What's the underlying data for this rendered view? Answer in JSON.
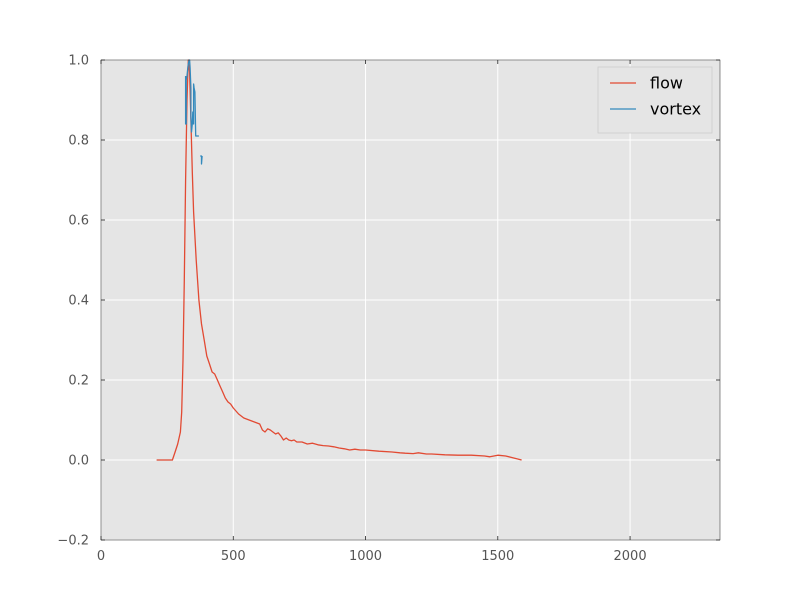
{
  "chart_data": {
    "type": "line",
    "title": "",
    "xlabel": "",
    "ylabel": "",
    "xlim": [
      0,
      2340
    ],
    "ylim": [
      -0.2,
      1.0
    ],
    "xticks": [
      0,
      500,
      1000,
      1500,
      2000
    ],
    "xtick_labels": [
      "0",
      "500",
      "1000",
      "1500",
      "2000"
    ],
    "yticks": [
      -0.2,
      0.0,
      0.2,
      0.4,
      0.6,
      0.8,
      1.0
    ],
    "ytick_labels": [
      "−0.2",
      "0.0",
      "0.2",
      "0.4",
      "0.6",
      "0.8",
      "1.0"
    ],
    "grid": true,
    "legend": "top-right",
    "series": [
      {
        "name": "flow",
        "color": "#E24A33",
        "x": [
          210,
          240,
          270,
          280,
          290,
          300,
          305,
          310,
          315,
          320,
          325,
          330,
          335,
          340,
          345,
          350,
          360,
          370,
          380,
          390,
          400,
          410,
          420,
          430,
          440,
          450,
          460,
          470,
          480,
          490,
          500,
          520,
          540,
          560,
          580,
          600,
          610,
          620,
          630,
          640,
          650,
          660,
          670,
          680,
          690,
          700,
          710,
          720,
          730,
          740,
          760,
          780,
          800,
          820,
          840,
          860,
          880,
          900,
          920,
          940,
          960,
          980,
          1000,
          1050,
          1100,
          1130,
          1150,
          1180,
          1200,
          1230,
          1250,
          1300,
          1350,
          1400,
          1450,
          1470,
          1500,
          1530,
          1560,
          1590
        ],
        "y": [
          0.0,
          0.0,
          0.0,
          0.02,
          0.04,
          0.07,
          0.12,
          0.25,
          0.45,
          0.7,
          0.9,
          1.0,
          0.97,
          0.85,
          0.72,
          0.62,
          0.5,
          0.4,
          0.34,
          0.3,
          0.26,
          0.24,
          0.22,
          0.215,
          0.2,
          0.185,
          0.17,
          0.155,
          0.145,
          0.14,
          0.13,
          0.115,
          0.105,
          0.1,
          0.095,
          0.09,
          0.075,
          0.07,
          0.078,
          0.075,
          0.07,
          0.065,
          0.068,
          0.06,
          0.05,
          0.055,
          0.05,
          0.048,
          0.05,
          0.045,
          0.045,
          0.04,
          0.042,
          0.038,
          0.036,
          0.035,
          0.033,
          0.03,
          0.028,
          0.025,
          0.027,
          0.025,
          0.025,
          0.022,
          0.02,
          0.018,
          0.017,
          0.016,
          0.018,
          0.015,
          0.015,
          0.013,
          0.012,
          0.012,
          0.01,
          0.008,
          0.012,
          0.01,
          0.005,
          0.0
        ]
      },
      {
        "name": "vortex",
        "color": "#348ABD",
        "segments": [
          {
            "x": [
              320,
              320,
              322,
              322,
              325,
              328,
              330,
              333,
              335,
              337,
              340,
              340,
              342,
              345,
              347,
              350,
              350,
              352,
              355,
              358,
              360,
              363,
              365,
              368,
              370
            ],
            "y": [
              0.96,
              0.84,
              0.84,
              0.95,
              0.96,
              0.98,
              0.99,
              1.0,
              1.0,
              0.98,
              0.93,
              0.86,
              0.82,
              0.84,
              0.87,
              0.84,
              0.94,
              0.93,
              0.92,
              0.81,
              0.81,
              0.81,
              0.81,
              0.81,
              0.81
            ]
          },
          {
            "x": [
              375,
              380,
              380,
              382
            ],
            "y": [
              0.76,
              0.76,
              0.74,
              0.76
            ]
          }
        ]
      }
    ]
  }
}
